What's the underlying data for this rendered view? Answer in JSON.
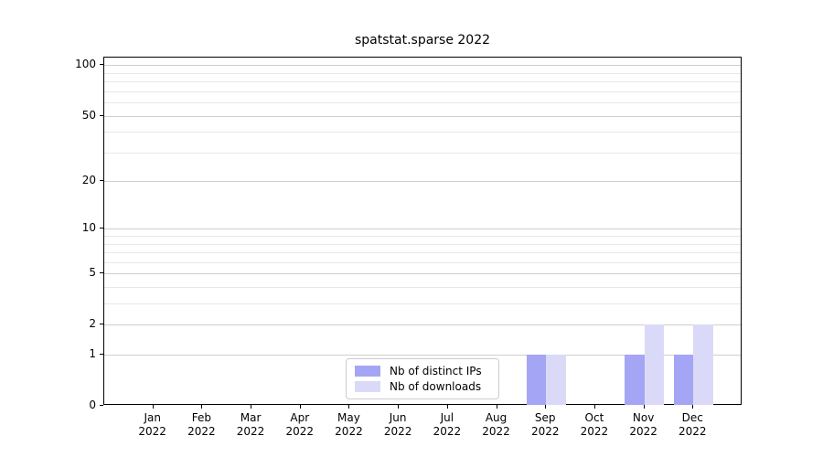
{
  "chart_data": {
    "type": "bar",
    "title": "spatstat.sparse 2022",
    "categories": [
      "Jan 2022",
      "Feb 2022",
      "Mar 2022",
      "Apr 2022",
      "May 2022",
      "Jun 2022",
      "Jul 2022",
      "Aug 2022",
      "Sep 2022",
      "Oct 2022",
      "Nov 2022",
      "Dec 2022"
    ],
    "series": [
      {
        "name": "Nb of distinct IPs",
        "color": "#a5a5f5",
        "values": [
          0,
          0,
          0,
          0,
          0,
          0,
          0,
          0,
          1,
          0,
          1,
          1
        ]
      },
      {
        "name": "Nb of downloads",
        "color": "#dadaf8",
        "values": [
          0,
          0,
          0,
          0,
          0,
          0,
          0,
          0,
          1,
          0,
          2,
          2
        ]
      }
    ],
    "yscale": "log1p",
    "ylim": [
      0,
      111
    ],
    "yticks": [
      0,
      1,
      2,
      5,
      10,
      20,
      50,
      100
    ],
    "minor_yticks": [
      3,
      4,
      6,
      7,
      8,
      9,
      30,
      40,
      60,
      70,
      80,
      90
    ],
    "xlabel": "",
    "ylabel": "",
    "grid": true,
    "legend_position": "inside-bottom-center",
    "bar_width_fraction": 0.4
  },
  "colors": {
    "grid_major": "#cfcfcf",
    "grid_minor": "#e8e8e8",
    "spine": "#000000",
    "background": "#ffffff",
    "text": "#000000"
  }
}
